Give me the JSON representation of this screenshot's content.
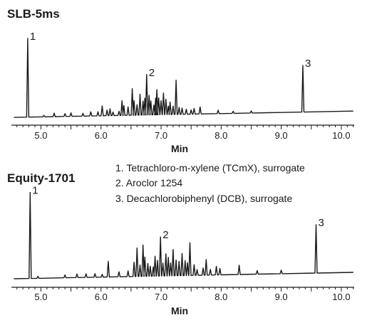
{
  "chart_data": [
    {
      "type": "line",
      "title": "SLB-5ms",
      "xlabel": "Min",
      "xlim": [
        4.55,
        10.25
      ],
      "xticks": [
        "5.0",
        "6.0",
        "7.0",
        "8.0",
        "9.0",
        "10.0"
      ],
      "baseline": {
        "x": [
          4.55,
          10.2
        ],
        "y": [
          3,
          12
        ]
      },
      "peaks": [
        {
          "x": 4.78,
          "y": 113,
          "label": "1"
        },
        {
          "x": 5.05,
          "y": 2
        },
        {
          "x": 5.22,
          "y": 5
        },
        {
          "x": 5.4,
          "y": 4
        },
        {
          "x": 5.5,
          "y": 5
        },
        {
          "x": 5.7,
          "y": 4
        },
        {
          "x": 5.83,
          "y": 6
        },
        {
          "x": 5.95,
          "y": 6
        },
        {
          "x": 6.02,
          "y": 14
        },
        {
          "x": 6.1,
          "y": 8
        },
        {
          "x": 6.15,
          "y": 10
        },
        {
          "x": 6.2,
          "y": 5
        },
        {
          "x": 6.3,
          "y": 6
        },
        {
          "x": 6.35,
          "y": 21
        },
        {
          "x": 6.38,
          "y": 14
        },
        {
          "x": 6.45,
          "y": 12
        },
        {
          "x": 6.52,
          "y": 38
        },
        {
          "x": 6.55,
          "y": 21
        },
        {
          "x": 6.6,
          "y": 15
        },
        {
          "x": 6.65,
          "y": 30
        },
        {
          "x": 6.7,
          "y": 20
        },
        {
          "x": 6.73,
          "y": 24
        },
        {
          "x": 6.76,
          "y": 58,
          "label": "2"
        },
        {
          "x": 6.8,
          "y": 28
        },
        {
          "x": 6.83,
          "y": 20
        },
        {
          "x": 6.88,
          "y": 14
        },
        {
          "x": 6.91,
          "y": 24
        },
        {
          "x": 6.93,
          "y": 36
        },
        {
          "x": 6.96,
          "y": 24
        },
        {
          "x": 7.0,
          "y": 20
        },
        {
          "x": 7.04,
          "y": 31
        },
        {
          "x": 7.08,
          "y": 22
        },
        {
          "x": 7.12,
          "y": 12
        },
        {
          "x": 7.15,
          "y": 18
        },
        {
          "x": 7.2,
          "y": 12
        },
        {
          "x": 7.25,
          "y": 49
        },
        {
          "x": 7.3,
          "y": 10
        },
        {
          "x": 7.35,
          "y": 9
        },
        {
          "x": 7.42,
          "y": 7
        },
        {
          "x": 7.5,
          "y": 6
        },
        {
          "x": 7.55,
          "y": 8
        },
        {
          "x": 7.65,
          "y": 10
        },
        {
          "x": 7.95,
          "y": 5
        },
        {
          "x": 8.2,
          "y": 3
        },
        {
          "x": 8.5,
          "y": 3
        },
        {
          "x": 9.36,
          "y": 67,
          "label": "3"
        }
      ]
    },
    {
      "type": "line",
      "title": "Equity-1701",
      "xlabel": "Min",
      "xlim": [
        4.55,
        10.25
      ],
      "xticks": [
        "5.0",
        "6.0",
        "7.0",
        "8.0",
        "9.0",
        "10.0"
      ],
      "baseline": {
        "x": [
          4.55,
          10.2
        ],
        "y": [
          3,
          12
        ]
      },
      "peaks": [
        {
          "x": 4.82,
          "y": 121,
          "label": "1"
        },
        {
          "x": 4.95,
          "y": 3
        },
        {
          "x": 5.4,
          "y": 4
        },
        {
          "x": 5.6,
          "y": 5
        },
        {
          "x": 5.75,
          "y": 5
        },
        {
          "x": 5.9,
          "y": 5
        },
        {
          "x": 6.02,
          "y": 4
        },
        {
          "x": 6.12,
          "y": 22
        },
        {
          "x": 6.3,
          "y": 7
        },
        {
          "x": 6.45,
          "y": 8
        },
        {
          "x": 6.55,
          "y": 20
        },
        {
          "x": 6.6,
          "y": 40
        },
        {
          "x": 6.65,
          "y": 16
        },
        {
          "x": 6.7,
          "y": 44
        },
        {
          "x": 6.73,
          "y": 27
        },
        {
          "x": 6.78,
          "y": 18
        },
        {
          "x": 6.82,
          "y": 14
        },
        {
          "x": 6.87,
          "y": 13
        },
        {
          "x": 6.9,
          "y": 28
        },
        {
          "x": 6.94,
          "y": 22
        },
        {
          "x": 6.99,
          "y": 55,
          "label": "2"
        },
        {
          "x": 7.03,
          "y": 18
        },
        {
          "x": 7.08,
          "y": 31
        },
        {
          "x": 7.12,
          "y": 26
        },
        {
          "x": 7.16,
          "y": 18
        },
        {
          "x": 7.2,
          "y": 37
        },
        {
          "x": 7.25,
          "y": 22
        },
        {
          "x": 7.3,
          "y": 20
        },
        {
          "x": 7.35,
          "y": 31
        },
        {
          "x": 7.4,
          "y": 21
        },
        {
          "x": 7.44,
          "y": 18
        },
        {
          "x": 7.48,
          "y": 46
        },
        {
          "x": 7.55,
          "y": 15
        },
        {
          "x": 7.6,
          "y": 8
        },
        {
          "x": 7.7,
          "y": 10
        },
        {
          "x": 7.75,
          "y": 22
        },
        {
          "x": 7.82,
          "y": 8
        },
        {
          "x": 7.92,
          "y": 12
        },
        {
          "x": 7.98,
          "y": 9
        },
        {
          "x": 8.3,
          "y": 13
        },
        {
          "x": 8.6,
          "y": 5
        },
        {
          "x": 9.0,
          "y": 5
        },
        {
          "x": 9.58,
          "y": 68,
          "label": "3"
        }
      ]
    }
  ],
  "legend": {
    "items": [
      "1.  Tetrachloro-m-xylene (TCmX), surrogate",
      "2.  Aroclor 1254",
      "3.  Decachlorobiphenyl (DCB), surrogate"
    ]
  }
}
